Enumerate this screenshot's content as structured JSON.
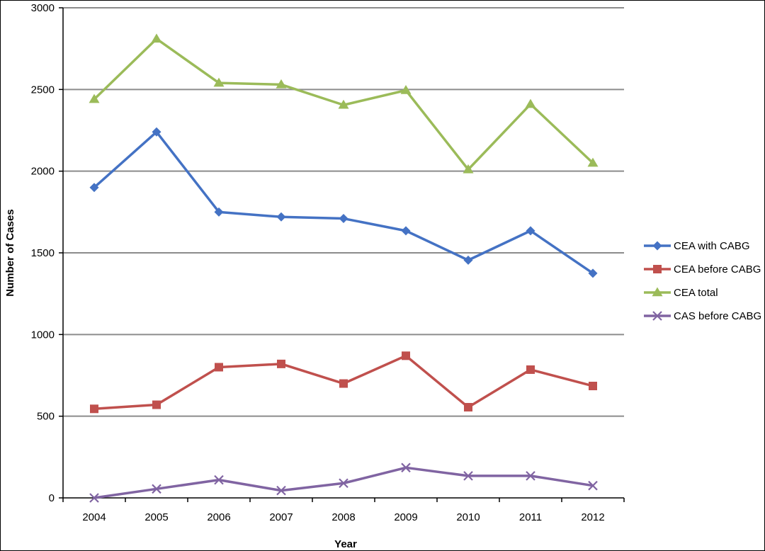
{
  "chart_data": {
    "type": "line",
    "title": "",
    "xlabel": "Year",
    "ylabel": "Number of Cases",
    "ylim": [
      0,
      3000
    ],
    "yticks": [
      0,
      500,
      1000,
      1500,
      2000,
      2500,
      3000
    ],
    "grid": "horizontal",
    "legend_position": "right",
    "categories": [
      "2004",
      "2005",
      "2006",
      "2007",
      "2008",
      "2009",
      "2010",
      "2011",
      "2012"
    ],
    "series": [
      {
        "name": "CEA with CABG",
        "color": "#4472c4",
        "marker": "diamond",
        "values": [
          1900,
          2240,
          1750,
          1720,
          1710,
          1635,
          1455,
          1635,
          1375
        ]
      },
      {
        "name": "CEA before CABG",
        "color": "#c0504d",
        "marker": "square",
        "values": [
          545,
          570,
          800,
          820,
          700,
          870,
          555,
          785,
          685
        ]
      },
      {
        "name": "CEA total",
        "color": "#9bbb59",
        "marker": "triangle",
        "values": [
          2440,
          2810,
          2540,
          2530,
          2405,
          2495,
          2010,
          2410,
          2050
        ]
      },
      {
        "name": "CAS before CABG",
        "color": "#8064a2",
        "marker": "x",
        "values": [
          0,
          55,
          110,
          45,
          90,
          185,
          135,
          135,
          75
        ]
      }
    ]
  }
}
